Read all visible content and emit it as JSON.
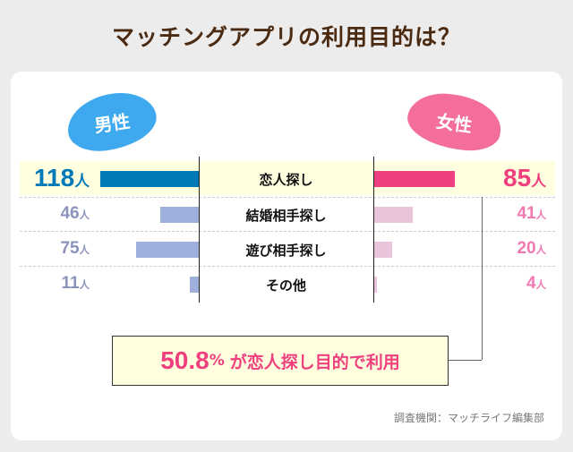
{
  "title": "マッチングアプリの利用目的は？",
  "chart_data": {
    "type": "bar",
    "title": "マッチングアプリの利用目的は？",
    "categories": [
      "恋人探し",
      "結婚相手探し",
      "遊び相手探し",
      "その他"
    ],
    "unit": "人",
    "series": [
      {
        "name": "男性",
        "values": [
          118,
          46,
          75,
          11
        ],
        "color": "#0079b8",
        "color_secondary": "#9fb0dc",
        "label_color": "#0079b8",
        "label_color_secondary": "#8b93bb"
      },
      {
        "name": "女性",
        "values": [
          85,
          41,
          20,
          4
        ],
        "color": "#ef3f7f",
        "color_secondary": "#e9c4da",
        "label_color": "#ef3f7f",
        "label_color_secondary": "#f07ab0"
      }
    ],
    "highlight_category": "恋人探し"
  },
  "callout": {
    "value": "50.8",
    "unit": "%",
    "text": "が恋人探し目的で利用"
  },
  "source": "調査機関：マッチライフ編集部"
}
